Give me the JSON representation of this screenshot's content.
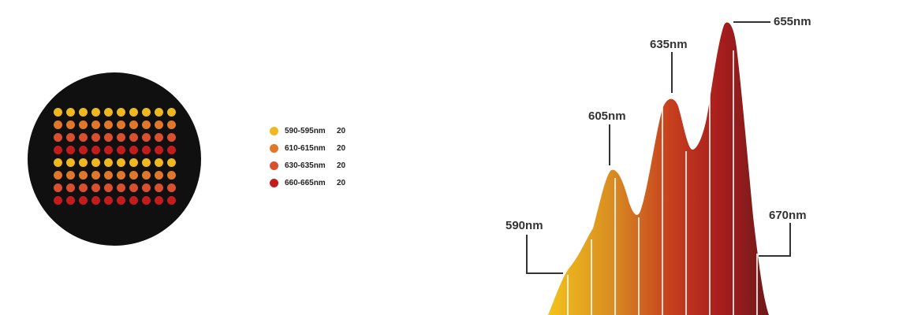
{
  "panel": {
    "rows": [
      0,
      1,
      2,
      3,
      0,
      1,
      2,
      3
    ],
    "columns": 10
  },
  "legend": [
    {
      "label": "590-595nm",
      "count": "20",
      "color": "#f0b81e"
    },
    {
      "label": "610-615nm",
      "count": "20",
      "color": "#e0772a"
    },
    {
      "label": "630-635nm",
      "count": "20",
      "color": "#d8502e"
    },
    {
      "label": "660-665nm",
      "count": "20",
      "color": "#c41c1c"
    }
  ],
  "spectrum": {
    "peaks": [
      {
        "label": "590nm"
      },
      {
        "label": "605nm"
      },
      {
        "label": "635nm"
      },
      {
        "label": "655nm"
      },
      {
        "label": "670nm"
      }
    ],
    "gradient": [
      "#f2c31c",
      "#d88a22",
      "#c7401e",
      "#a81d1d",
      "#6e1a1a"
    ]
  }
}
